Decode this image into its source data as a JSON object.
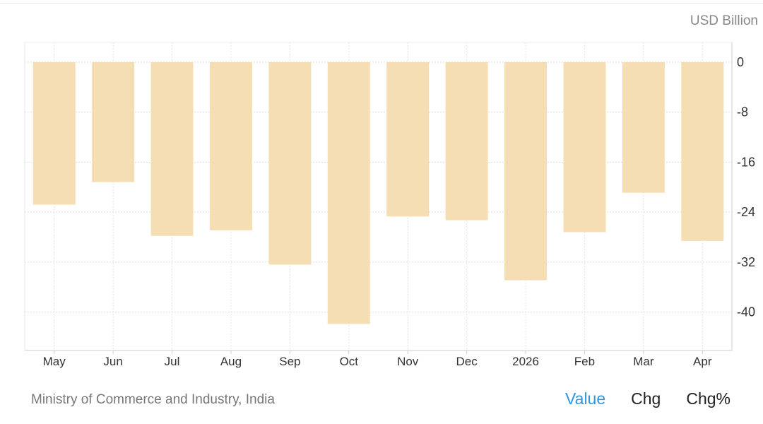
{
  "chart_data": {
    "type": "bar",
    "unit": "USD Billion",
    "categories": [
      "May",
      "Jun",
      "Jul",
      "Aug",
      "Sep",
      "Oct",
      "Nov",
      "Dec",
      "2026",
      "Feb",
      "Mar",
      "Apr"
    ],
    "values": [
      -22.8,
      -19.2,
      -27.8,
      -26.9,
      -32.4,
      -41.9,
      -24.7,
      -25.3,
      -34.9,
      -27.2,
      -20.9,
      -28.6
    ],
    "ylim": [
      -46,
      3
    ],
    "yticks": [
      0,
      -8,
      -16,
      -24,
      -32,
      -40
    ],
    "ytick_labels": [
      "0",
      "-8",
      "-16",
      "-24",
      "-32",
      "-40"
    ],
    "bar_color": "#f5deb3",
    "grid": true,
    "y_axis_side": "right"
  },
  "source": "Ministry of Commerce and Industry, India",
  "tabs": [
    {
      "label": "Value",
      "active": true
    },
    {
      "label": "Chg",
      "active": false
    },
    {
      "label": "Chg%",
      "active": false
    }
  ],
  "colors": {
    "active_tab": "#2f96e0",
    "text": "#333333",
    "grid": "#dddddd"
  }
}
